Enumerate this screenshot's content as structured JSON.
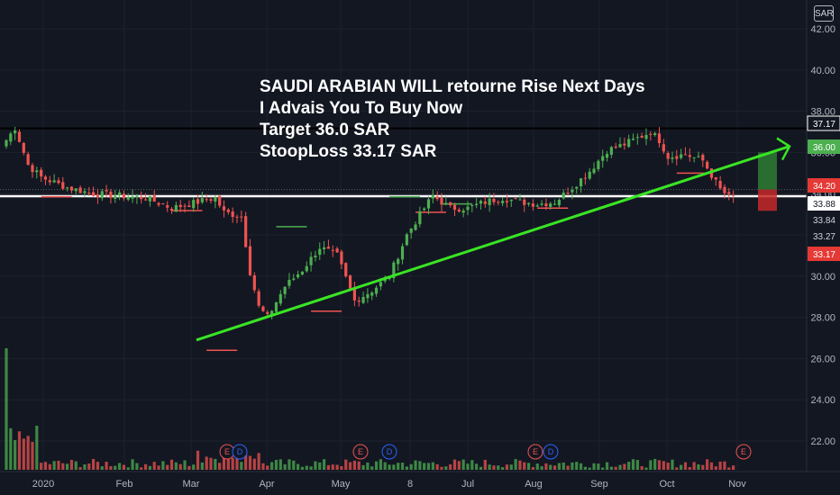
{
  "currency": "SAR",
  "annotation": {
    "lines": [
      "SAUDI ARABIAN WILL retourne Rise Next Days",
      "I Advais You To Buy Now",
      "Target 36.0 SAR",
      "StoopLoss 33.17 SAR"
    ]
  },
  "colors": {
    "background": "#131722",
    "grid": "#1e222d",
    "up": "#26a69a",
    "up_bright": "#4caf50",
    "down": "#ef5350",
    "trendline": "#39e524",
    "support": "#ffffff",
    "resistance": "#000000",
    "profit_zone": "#2e7d32",
    "loss_zone": "#c62828"
  },
  "chart_data": {
    "type": "candlestick",
    "y_axis": {
      "ticks": [
        "22.00",
        "24.00",
        "26.00",
        "28.00",
        "30.00",
        "32.00",
        "34.00",
        "36.00",
        "38.00",
        "40.00",
        "42.00"
      ],
      "range": [
        20.6,
        43.4
      ]
    },
    "x_axis": {
      "ticks": [
        "2020",
        "Feb",
        "Mar",
        "Apr",
        "May",
        "8",
        "Jul",
        "Aug",
        "Sep",
        "Oct",
        "Nov"
      ]
    },
    "price_labels": [
      {
        "text": "37.17",
        "value": 37.17,
        "kind": "resistance"
      },
      {
        "text": "36.00",
        "value": 36.0,
        "kind": "target"
      },
      {
        "text": "34.20",
        "value": 34.2,
        "kind": "entry"
      },
      {
        "text": "33.88",
        "value": 33.88,
        "kind": "support"
      },
      {
        "text": "33.84",
        "value": 33.84,
        "kind": "last"
      },
      {
        "text": "33.27",
        "value": 33.27,
        "kind": "plain"
      },
      {
        "text": "33.17",
        "value": 33.17,
        "kind": "stop"
      }
    ],
    "close_path": [
      [
        0,
        36.6
      ],
      [
        2,
        37.2
      ],
      [
        5,
        35.4
      ],
      [
        8,
        34.8
      ],
      [
        14,
        34.3
      ],
      [
        20,
        34.0
      ],
      [
        26,
        33.9
      ],
      [
        32,
        33.8
      ],
      [
        38,
        33.3
      ],
      [
        44,
        33.6
      ],
      [
        48,
        33.8
      ],
      [
        50,
        33.1
      ],
      [
        54,
        32.9
      ],
      [
        56,
        30.2
      ],
      [
        58,
        28.5
      ],
      [
        60,
        28.0
      ],
      [
        64,
        29.5
      ],
      [
        68,
        30.3
      ],
      [
        72,
        31.4
      ],
      [
        76,
        31.0
      ],
      [
        80,
        28.8
      ],
      [
        84,
        29.3
      ],
      [
        88,
        30.0
      ],
      [
        92,
        32.0
      ],
      [
        96,
        33.3
      ],
      [
        98,
        33.9
      ],
      [
        102,
        33.3
      ],
      [
        106,
        33.3
      ],
      [
        110,
        33.6
      ],
      [
        114,
        33.8
      ],
      [
        118,
        33.6
      ],
      [
        122,
        33.5
      ],
      [
        126,
        33.6
      ],
      [
        130,
        34.3
      ],
      [
        134,
        35.1
      ],
      [
        138,
        36.1
      ],
      [
        142,
        36.4
      ],
      [
        146,
        36.8
      ],
      [
        148,
        37.0
      ],
      [
        150,
        36.6
      ],
      [
        152,
        35.8
      ],
      [
        156,
        35.9
      ],
      [
        160,
        35.6
      ],
      [
        164,
        34.2
      ],
      [
        166,
        33.84
      ]
    ],
    "volume": {
      "spike_bar": 0,
      "spike_value": 1.0,
      "base": 0.06
    },
    "trendline": {
      "from": [
        46,
        26.9
      ],
      "to": [
        176,
        36.3
      ]
    },
    "support_level": 33.88,
    "resistance_level": 37.17,
    "position": {
      "entry": 34.2,
      "target": 36.0,
      "stop": 33.17,
      "from_bar": 168,
      "to_bar": 172
    },
    "pivots": [
      {
        "bar": 8,
        "value": 33.85,
        "kind": "low"
      },
      {
        "bar": 38,
        "value": 33.18,
        "kind": "low"
      },
      {
        "bar": 46,
        "value": 26.4,
        "kind": "low"
      },
      {
        "bar": 62,
        "value": 32.4,
        "kind": "high"
      },
      {
        "bar": 70,
        "value": 28.3,
        "kind": "low"
      },
      {
        "bar": 94,
        "value": 33.1,
        "kind": "low"
      },
      {
        "bar": 88,
        "value": 33.85,
        "kind": "high"
      },
      {
        "bar": 100,
        "value": 33.5,
        "kind": "high"
      },
      {
        "bar": 122,
        "value": 33.3,
        "kind": "low"
      },
      {
        "bar": 154,
        "value": 35.0,
        "kind": "low"
      }
    ],
    "events": [
      {
        "letter": "E",
        "bar": 51,
        "kind": "earnings"
      },
      {
        "letter": "D",
        "bar": 54,
        "kind": "dividend"
      },
      {
        "letter": "E",
        "bar": 83,
        "kind": "earnings"
      },
      {
        "letter": "D",
        "bar": 90,
        "kind": "dividend"
      },
      {
        "letter": "E",
        "bar": 123,
        "kind": "earnings"
      },
      {
        "letter": "D",
        "bar": 126,
        "kind": "dividend"
      },
      {
        "letter": "E",
        "bar": 171,
        "kind": "earnings"
      }
    ]
  }
}
